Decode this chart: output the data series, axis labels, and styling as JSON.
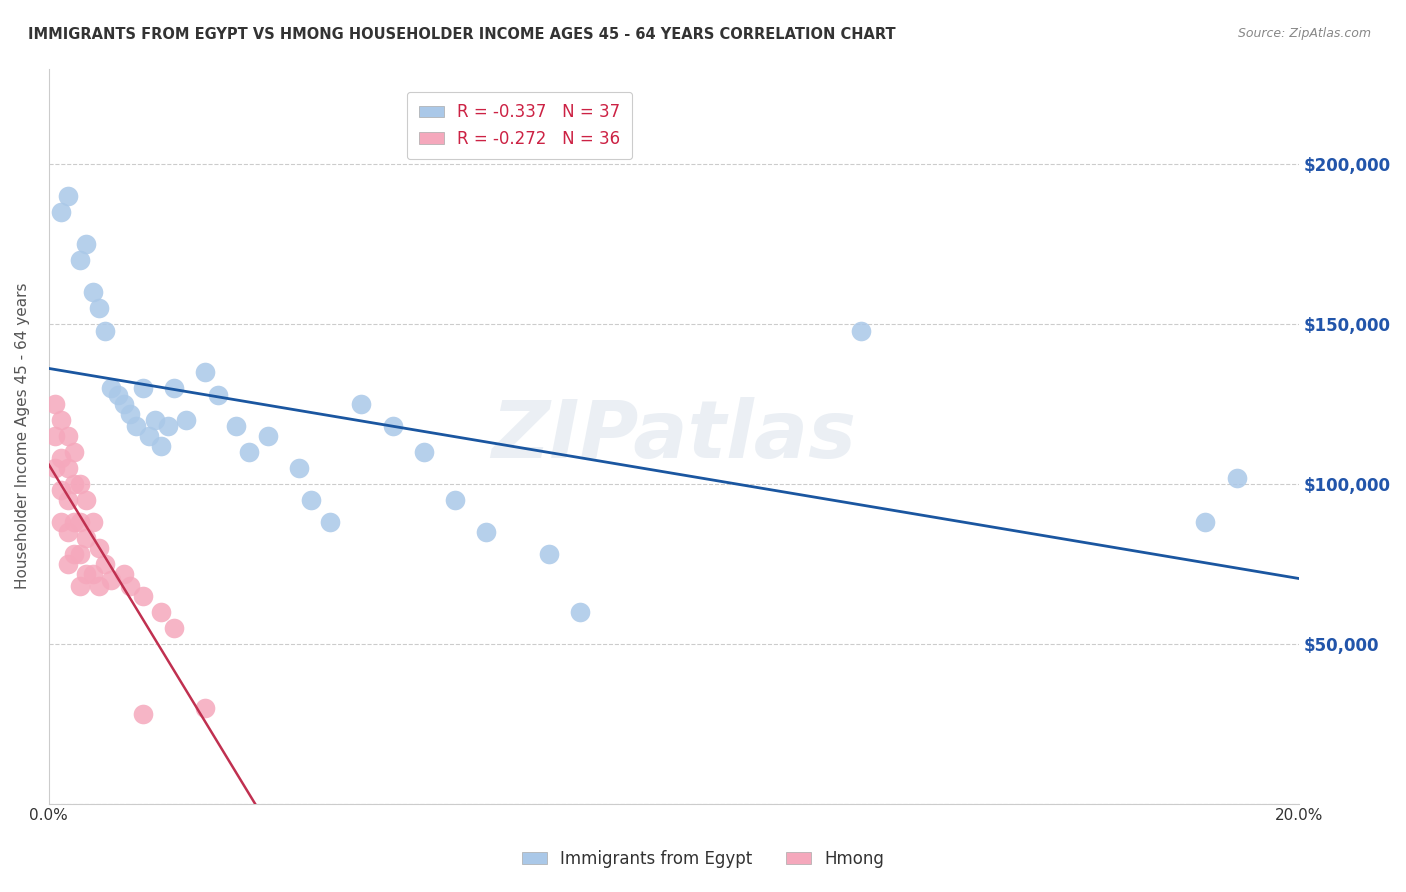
{
  "title": "IMMIGRANTS FROM EGYPT VS HMONG HOUSEHOLDER INCOME AGES 45 - 64 YEARS CORRELATION CHART",
  "source": "Source: ZipAtlas.com",
  "ylabel": "Householder Income Ages 45 - 64 years",
  "xlim": [
    0.0,
    0.2
  ],
  "ylim": [
    0,
    230000
  ],
  "legend_r_egypt": "R = -0.337",
  "legend_n_egypt": "N = 37",
  "legend_r_hmong": "R = -0.272",
  "legend_n_hmong": "N = 36",
  "egypt_color": "#aac8e8",
  "hmong_color": "#f5a8bc",
  "egypt_line_color": "#1a56a0",
  "hmong_line_color": "#c03050",
  "hmong_dashed_color": "#e0b8c8",
  "watermark": "ZIPatlas",
  "egypt_x": [
    0.002,
    0.003,
    0.005,
    0.006,
    0.007,
    0.008,
    0.009,
    0.01,
    0.011,
    0.012,
    0.013,
    0.014,
    0.015,
    0.016,
    0.017,
    0.018,
    0.019,
    0.02,
    0.022,
    0.025,
    0.027,
    0.03,
    0.032,
    0.035,
    0.04,
    0.042,
    0.045,
    0.05,
    0.055,
    0.06,
    0.065,
    0.07,
    0.08,
    0.085,
    0.13,
    0.185,
    0.19
  ],
  "egypt_y": [
    185000,
    190000,
    170000,
    175000,
    160000,
    155000,
    148000,
    130000,
    128000,
    125000,
    122000,
    118000,
    130000,
    115000,
    120000,
    112000,
    118000,
    130000,
    120000,
    135000,
    128000,
    118000,
    110000,
    115000,
    105000,
    95000,
    88000,
    125000,
    118000,
    110000,
    95000,
    85000,
    78000,
    60000,
    148000,
    88000,
    102000
  ],
  "hmong_x": [
    0.001,
    0.001,
    0.001,
    0.002,
    0.002,
    0.002,
    0.002,
    0.003,
    0.003,
    0.003,
    0.003,
    0.003,
    0.004,
    0.004,
    0.004,
    0.004,
    0.005,
    0.005,
    0.005,
    0.005,
    0.006,
    0.006,
    0.006,
    0.007,
    0.007,
    0.008,
    0.008,
    0.009,
    0.01,
    0.012,
    0.013,
    0.015,
    0.018,
    0.02,
    0.025,
    0.015
  ],
  "hmong_y": [
    125000,
    115000,
    105000,
    120000,
    108000,
    98000,
    88000,
    115000,
    105000,
    95000,
    85000,
    75000,
    110000,
    100000,
    88000,
    78000,
    100000,
    88000,
    78000,
    68000,
    95000,
    83000,
    72000,
    88000,
    72000,
    80000,
    68000,
    75000,
    70000,
    72000,
    68000,
    65000,
    60000,
    55000,
    30000,
    28000
  ]
}
